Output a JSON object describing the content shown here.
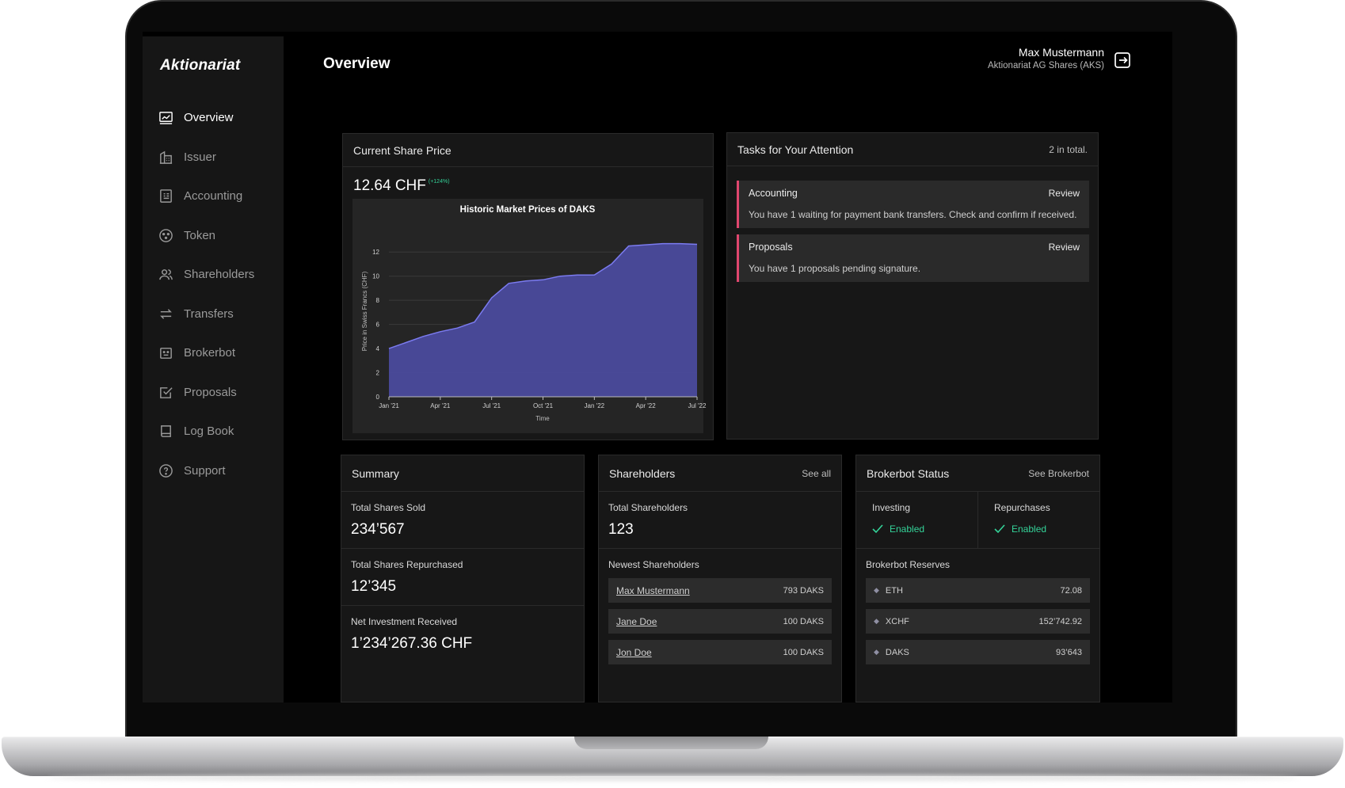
{
  "app": {
    "brand": "Aktionariat",
    "page_title": "Overview"
  },
  "user": {
    "name": "Max Mustermann",
    "company": "Aktionariat AG Shares (AKS)"
  },
  "sidebar": {
    "items": [
      {
        "label": "Overview",
        "icon": "chart-icon",
        "active": true
      },
      {
        "label": "Issuer",
        "icon": "building-icon"
      },
      {
        "label": "Accounting",
        "icon": "receipt-icon"
      },
      {
        "label": "Token",
        "icon": "token-icon"
      },
      {
        "label": "Shareholders",
        "icon": "users-icon"
      },
      {
        "label": "Transfers",
        "icon": "arrows-icon"
      },
      {
        "label": "Brokerbot",
        "icon": "bot-icon"
      },
      {
        "label": "Proposals",
        "icon": "checkbox-icon"
      },
      {
        "label": "Log Book",
        "icon": "book-icon"
      },
      {
        "label": "Support",
        "icon": "help-icon"
      }
    ]
  },
  "share_price": {
    "title": "Current Share Price",
    "price": "12.64 CHF",
    "change": "(+124%)"
  },
  "chart_data": {
    "type": "area",
    "title": "Historic Market Prices of DAKS",
    "xlabel": "Time",
    "ylabel": "Price in Swiss Francs (CHF)",
    "x_ticks": [
      "Jan '21",
      "Apr '21",
      "Jul '21",
      "Oct '21",
      "Jan '22",
      "Apr '22",
      "Jul '22"
    ],
    "y_ticks": [
      0,
      2,
      4,
      6,
      8,
      10,
      12
    ],
    "ylim": [
      0,
      13
    ],
    "x": [
      "2021-01",
      "2021-02",
      "2021-03",
      "2021-04",
      "2021-05",
      "2021-06",
      "2021-07",
      "2021-08",
      "2021-09",
      "2021-10",
      "2021-11",
      "2021-12",
      "2022-01",
      "2022-02",
      "2022-03",
      "2022-04",
      "2022-05",
      "2022-06",
      "2022-07"
    ],
    "values": [
      4.0,
      4.5,
      5.0,
      5.4,
      5.7,
      6.2,
      8.2,
      9.4,
      9.6,
      9.7,
      10.0,
      10.1,
      10.1,
      11.0,
      12.5,
      12.6,
      12.7,
      12.7,
      12.64
    ],
    "color": "#4a4a9c",
    "line_color": "#7b7bf0",
    "grid": true
  },
  "tasks": {
    "title": "Tasks for Your Attention",
    "total": "2 in total.",
    "items": [
      {
        "title": "Accounting",
        "action": "Review",
        "desc": "You have 1 waiting for payment bank transfers. Check and confirm if received."
      },
      {
        "title": "Proposals",
        "action": "Review",
        "desc": "You have 1 proposals pending signature."
      }
    ],
    "accent": "#e0466e"
  },
  "summary": {
    "title": "Summary",
    "stats": [
      {
        "label": "Total Shares Sold",
        "value": "234’567"
      },
      {
        "label": "Total Shares Repurchased",
        "value": "12’345"
      },
      {
        "label": "Net Investment Received",
        "value": "1’234’267.36 CHF"
      }
    ]
  },
  "shareholders": {
    "title": "Shareholders",
    "link": "See all",
    "total_label": "Total Shareholders",
    "total_value": "123",
    "newest_label": "Newest Shareholders",
    "rows": [
      {
        "name": "Max Mustermann",
        "value": "793 DAKS"
      },
      {
        "name": "Jane Doe",
        "value": "100 DAKS"
      },
      {
        "name": "Jon Doe",
        "value": "100 DAKS"
      }
    ]
  },
  "brokerbot": {
    "title": "Brokerbot Status",
    "link": "See Brokerbot",
    "investing_label": "Investing",
    "investing_value": "Enabled",
    "repurchases_label": "Repurchases",
    "repurchases_value": "Enabled",
    "reserves_label": "Brokerbot Reserves",
    "reserves": [
      {
        "token": "ETH",
        "value": "72.08"
      },
      {
        "token": "XCHF",
        "value": "152’742.92"
      },
      {
        "token": "DAKS",
        "value": "93’643"
      }
    ],
    "status_color": "#34d399"
  }
}
